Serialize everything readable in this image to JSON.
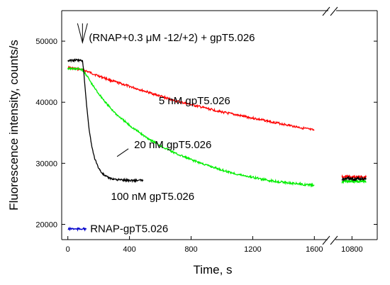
{
  "chart_data": {
    "type": "line",
    "xlabel": "Time, s",
    "ylabel": "Fluorescence intensity, counts/s",
    "xlim_main": [
      -40,
      1640
    ],
    "xlim_break": [
      10650,
      11050
    ],
    "ylim": [
      17500,
      55000
    ],
    "x_ticks": [
      {
        "value": 0,
        "label": "0"
      },
      {
        "value": 400,
        "label": "400"
      },
      {
        "value": 800,
        "label": "800"
      },
      {
        "value": 1200,
        "label": "1200"
      },
      {
        "value": 1600,
        "label": "1600"
      },
      {
        "value": 10800,
        "label": "10800"
      }
    ],
    "y_ticks": [
      {
        "value": 20000,
        "label": "20000"
      },
      {
        "value": 30000,
        "label": "30000"
      },
      {
        "value": 40000,
        "label": "40000"
      },
      {
        "value": 50000,
        "label": "50000"
      }
    ],
    "grid": false,
    "annotation": {
      "text": "(RNAP+0.3 μM -12/+2) + gpT5.026",
      "x": 95
    },
    "series": [
      {
        "name": "5 nM gpT5.026",
        "color": "#ff0000",
        "x": [
          0,
          100,
          200,
          300,
          400,
          500,
          600,
          700,
          800,
          900,
          1000,
          1100,
          1200,
          1300,
          1400,
          1500,
          1600
        ],
        "y": [
          45700,
          45300,
          44300,
          43400,
          42600,
          41800,
          41000,
          40200,
          39600,
          39000,
          38400,
          37900,
          37400,
          36900,
          36400,
          35900,
          35400
        ],
        "x_late": [
          10700,
          10760,
          10820,
          10880,
          10940
        ],
        "y_late": [
          27700,
          27800,
          27700,
          27800,
          27700
        ]
      },
      {
        "name": "20 nM gpT5.026",
        "color": "#00ee00",
        "x": [
          0,
          90,
          120,
          160,
          200,
          260,
          320,
          400,
          500,
          600,
          700,
          800,
          900,
          1000,
          1100,
          1200,
          1300,
          1400,
          1500,
          1600
        ],
        "y": [
          45500,
          45400,
          44500,
          42800,
          41400,
          39500,
          37900,
          36200,
          34400,
          32900,
          31600,
          30600,
          29700,
          28900,
          28200,
          27700,
          27200,
          26900,
          26600,
          26400
        ],
        "x_late": [
          10700,
          10760,
          10820,
          10880,
          10940
        ],
        "y_late": [
          27000,
          27100,
          27000,
          27100,
          27000
        ]
      },
      {
        "name": "100 nM gpT5.026",
        "color": "#000000",
        "x": [
          0,
          50,
          95,
          105,
          115,
          125,
          135,
          150,
          165,
          185,
          210,
          240,
          280,
          330,
          400,
          490
        ],
        "y": [
          46800,
          46900,
          46800,
          44500,
          41500,
          38700,
          36200,
          33600,
          31600,
          30000,
          28800,
          27900,
          27500,
          27300,
          27200,
          27200
        ],
        "x_late": [
          10700,
          10760,
          10820,
          10880,
          10940
        ],
        "y_late": [
          27400,
          27500,
          27400,
          27500,
          27400
        ]
      },
      {
        "name": "RNAP-gpT5.026",
        "color": "#0000cc",
        "x": [
          0,
          30,
          60,
          90,
          120
        ],
        "y": [
          19200,
          19300,
          19200,
          19300,
          19200
        ]
      }
    ],
    "series_label_anchor": [
      {
        "x": 590,
        "y": 39700
      },
      {
        "x": 430,
        "y": 32500
      },
      {
        "x": 280,
        "y": 24000
      },
      {
        "x": 145,
        "y": 18700
      }
    ]
  }
}
